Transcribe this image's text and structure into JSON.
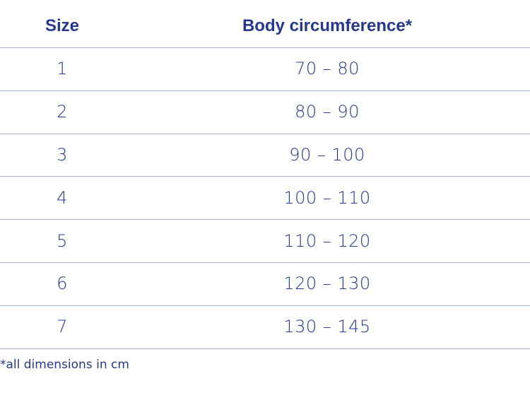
{
  "table": {
    "header": [
      "Size",
      "Body circumference*"
    ],
    "rows": [
      [
        "1",
        "70 – 80"
      ],
      [
        "2",
        "80 – 90"
      ],
      [
        "3",
        "90 – 100"
      ],
      [
        "4",
        "100 – 110"
      ],
      [
        "5",
        "110 – 120"
      ],
      [
        "6",
        "120 – 130"
      ],
      [
        "7",
        "130 – 145"
      ]
    ],
    "footnote": "*all dimensions in cm"
  }
}
